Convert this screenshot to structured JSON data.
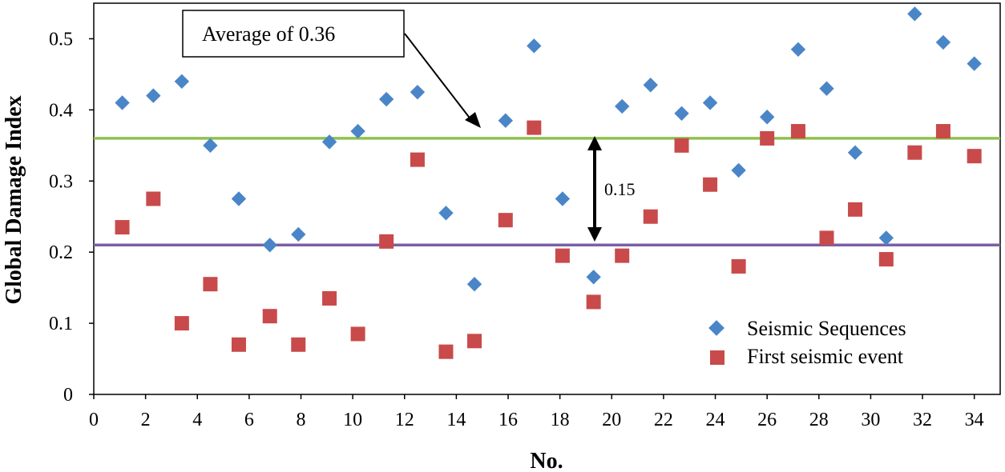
{
  "chart_data": {
    "type": "scatter",
    "title": "",
    "xlabel": "No.",
    "ylabel": "Global Damage Index",
    "xlim": [
      0,
      35
    ],
    "ylim": [
      0,
      0.55
    ],
    "x_ticks": [
      "0",
      "2",
      "4",
      "6",
      "8",
      "10",
      "12",
      "14",
      "16",
      "18",
      "20",
      "22",
      "24",
      "26",
      "28",
      "30",
      "32",
      "34"
    ],
    "y_ticks": [
      "0",
      "0.1",
      "0.2",
      "0.3",
      "0.4",
      "0.5"
    ],
    "grid": false,
    "legend_position": "bottom-right",
    "series": [
      {
        "name": "Seismic Sequences",
        "marker": "diamond",
        "color": "#4a86c7",
        "points": [
          [
            1.1,
            0.41
          ],
          [
            2.3,
            0.42
          ],
          [
            3.4,
            0.44
          ],
          [
            4.5,
            0.35
          ],
          [
            5.6,
            0.275
          ],
          [
            6.8,
            0.21
          ],
          [
            7.9,
            0.225
          ],
          [
            9.1,
            0.355
          ],
          [
            10.2,
            0.37
          ],
          [
            11.3,
            0.415
          ],
          [
            12.5,
            0.425
          ],
          [
            13.6,
            0.255
          ],
          [
            14.7,
            0.155
          ],
          [
            15.9,
            0.385
          ],
          [
            17.0,
            0.49
          ],
          [
            18.1,
            0.275
          ],
          [
            19.3,
            0.165
          ],
          [
            20.4,
            0.405
          ],
          [
            21.5,
            0.435
          ],
          [
            22.7,
            0.395
          ],
          [
            23.8,
            0.41
          ],
          [
            24.9,
            0.315
          ],
          [
            26.0,
            0.39
          ],
          [
            27.2,
            0.485
          ],
          [
            28.3,
            0.43
          ],
          [
            29.4,
            0.34
          ],
          [
            30.6,
            0.22
          ],
          [
            31.7,
            0.535
          ],
          [
            32.8,
            0.495
          ],
          [
            34.0,
            0.465
          ]
        ]
      },
      {
        "name": "First seismic event",
        "marker": "square",
        "color": "#c94a4a",
        "points": [
          [
            1.1,
            0.235
          ],
          [
            2.3,
            0.275
          ],
          [
            3.4,
            0.1
          ],
          [
            4.5,
            0.155
          ],
          [
            5.6,
            0.07
          ],
          [
            6.8,
            0.11
          ],
          [
            7.9,
            0.07
          ],
          [
            9.1,
            0.135
          ],
          [
            10.2,
            0.085
          ],
          [
            11.3,
            0.215
          ],
          [
            12.5,
            0.33
          ],
          [
            13.6,
            0.06
          ],
          [
            14.7,
            0.075
          ],
          [
            15.9,
            0.245
          ],
          [
            17.0,
            0.375
          ],
          [
            18.1,
            0.195
          ],
          [
            19.3,
            0.13
          ],
          [
            20.4,
            0.195
          ],
          [
            21.5,
            0.25
          ],
          [
            22.7,
            0.35
          ],
          [
            23.8,
            0.295
          ],
          [
            24.9,
            0.18
          ],
          [
            26.0,
            0.36
          ],
          [
            27.2,
            0.37
          ],
          [
            28.3,
            0.22
          ],
          [
            29.4,
            0.26
          ],
          [
            30.6,
            0.19
          ],
          [
            31.7,
            0.34
          ],
          [
            32.8,
            0.37
          ],
          [
            34.0,
            0.335
          ]
        ]
      }
    ],
    "reference_lines": [
      {
        "value": 0.36,
        "color": "#8fc04f"
      },
      {
        "value": 0.21,
        "color": "#7c5fa7"
      }
    ],
    "annotations": {
      "average_label": "Average of 0.36",
      "difference_label": "0.15"
    }
  }
}
